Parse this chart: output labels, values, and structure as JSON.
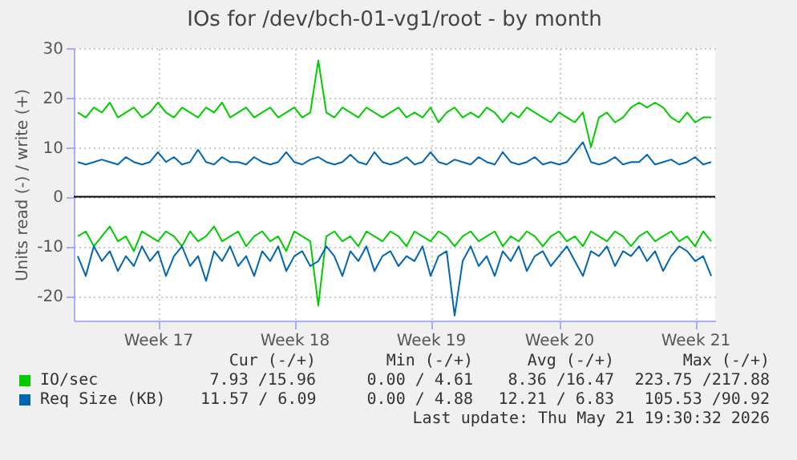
{
  "chart_data": {
    "type": "line",
    "title": "IOs for /dev/bch-01-vg1/root - by month",
    "ylabel": "Units read (-) / write (+)",
    "categories": [
      null,
      null,
      null,
      null,
      null,
      null,
      null,
      null,
      null,
      null,
      "Week 17",
      null,
      null,
      null,
      null,
      null,
      null,
      null,
      null,
      null,
      null,
      null,
      null,
      null,
      null,
      null,
      null,
      "Week 18",
      null,
      null,
      null,
      null,
      null,
      null,
      null,
      null,
      null,
      null,
      null,
      null,
      null,
      null,
      null,
      null,
      "Week 19",
      null,
      null,
      null,
      null,
      null,
      null,
      null,
      null,
      null,
      null,
      null,
      null,
      null,
      null,
      null,
      "Week 20",
      null,
      null,
      null,
      null,
      null,
      null,
      null,
      null,
      null,
      null,
      null,
      null,
      null,
      null,
      null,
      null,
      "Week 21",
      null,
      null
    ],
    "series": [
      {
        "name": "IO/sec",
        "color": "#00cc00",
        "values": [
          17,
          16,
          18,
          17,
          19,
          16,
          17,
          18,
          16,
          17,
          19,
          17,
          16,
          18,
          17,
          16,
          18,
          17,
          19,
          16,
          17,
          18,
          16,
          17,
          18,
          16,
          17,
          18,
          16,
          17,
          27.5,
          17,
          16,
          18,
          17,
          16,
          18,
          17,
          16,
          17,
          18,
          16,
          17,
          16,
          18,
          15,
          17,
          18,
          16,
          17,
          16,
          18,
          17,
          15,
          17,
          16,
          18,
          17,
          16,
          15,
          17,
          16,
          15,
          17,
          10,
          16,
          17,
          15,
          16,
          18,
          19,
          18,
          19,
          18,
          16,
          15,
          17,
          15,
          16,
          16
        ]
      },
      {
        "color": "#00cc00",
        "values": [
          -8,
          -7,
          -10,
          -8,
          -6,
          -9,
          -8,
          -11,
          -7,
          -8,
          -9,
          -7,
          -8,
          -10,
          -7,
          -9,
          -8,
          -6,
          -9,
          -8,
          -7,
          -10,
          -8,
          -7,
          -9,
          -8,
          -11,
          -7,
          -8,
          -9,
          -22,
          -8,
          -7,
          -9,
          -8,
          -10,
          -7,
          -8,
          -9,
          -7,
          -8,
          -10,
          -7,
          -8,
          -9,
          -7,
          -8,
          -10,
          -8,
          -7,
          -9,
          -8,
          -7,
          -10,
          -8,
          -9,
          -7,
          -8,
          -10,
          -8,
          -7,
          -9,
          -8,
          -10,
          -7,
          -8,
          -9,
          -7,
          -8,
          -10,
          -8,
          -7,
          -9,
          -8,
          -7,
          -9,
          -8,
          -10,
          -7,
          -9
        ]
      },
      {
        "name": "Req Size (KB)",
        "color": "#0066b3",
        "values": [
          7,
          6.5,
          7,
          7.5,
          7,
          6.5,
          8,
          7,
          6.5,
          7,
          9,
          7,
          8,
          6.5,
          7,
          9.5,
          7,
          6.5,
          8,
          7,
          7,
          6.5,
          8,
          7,
          6.5,
          7,
          9,
          7,
          6.5,
          7.5,
          8,
          7,
          6.5,
          7,
          8.5,
          7,
          6.5,
          9,
          7,
          6.5,
          7,
          8,
          6.5,
          7,
          9,
          7,
          6.5,
          7.5,
          7,
          6.5,
          8,
          7,
          6.5,
          9,
          7,
          6.5,
          7,
          8,
          6.5,
          7,
          6.5,
          7,
          9,
          11,
          7,
          6.5,
          7,
          8,
          6.5,
          7,
          7,
          8.5,
          6.5,
          7,
          7.5,
          6.5,
          7,
          8,
          6.5,
          7
        ]
      },
      {
        "color": "#0066b3",
        "values": [
          -12,
          -16,
          -10,
          -13,
          -11,
          -15,
          -12,
          -14,
          -10,
          -13,
          -11,
          -16,
          -12,
          -10,
          -14,
          -12,
          -17,
          -11,
          -13,
          -10,
          -14,
          -12,
          -16,
          -11,
          -13,
          -10,
          -15,
          -12,
          -11,
          -14,
          -13,
          -10,
          -12,
          -16,
          -11,
          -13,
          -10,
          -15,
          -12,
          -11,
          -14,
          -12,
          -13,
          -10,
          -16,
          -12,
          -11,
          -24,
          -13,
          -10,
          -14,
          -12,
          -16,
          -11,
          -13,
          -10,
          -15,
          -12,
          -11,
          -14,
          -12,
          -10,
          -13,
          -16,
          -11,
          -12,
          -10,
          -14,
          -11,
          -12,
          -10,
          -13,
          -11,
          -15,
          -12,
          -10,
          -11,
          -13,
          -12,
          -16
        ]
      }
    ],
    "ylim": [
      -25,
      30
    ],
    "yticks": [
      -20,
      -10,
      0,
      10,
      20,
      30
    ],
    "ref_lines": [
      {
        "axis": "y",
        "value": 0,
        "color": "#000000"
      }
    ],
    "grid": true,
    "legend": "bottom",
    "annotations": [
      "Cur (-/+)",
      "Min (-/+)",
      "Avg (-/+)",
      "Max (-/+)",
      "7.93 /15.96",
      "0.00 / 4.61",
      "8.36 /16.47",
      "223.75 /217.88",
      "11.57 / 6.09",
      "0.00 / 4.88",
      "12.21 / 6.83",
      "105.53 /90.92",
      "Last update: Thu May 21 19:30:32 2026"
    ]
  }
}
